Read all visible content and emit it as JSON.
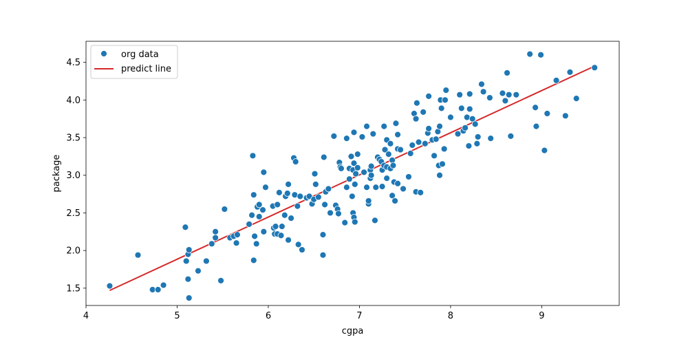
{
  "chart_data": {
    "type": "scatter",
    "xlabel": "cgpa",
    "ylabel": "package",
    "xlim": [
      4.0,
      9.85
    ],
    "ylim": [
      1.27,
      4.78
    ],
    "xticks": [
      4,
      5,
      6,
      7,
      8,
      9
    ],
    "yticks": [
      1.5,
      2.0,
      2.5,
      3.0,
      3.5,
      4.0,
      4.5
    ],
    "xtick_labels": [
      "4",
      "5",
      "6",
      "7",
      "8",
      "9"
    ],
    "ytick_labels": [
      "1.5",
      "2.0",
      "2.5",
      "3.0",
      "3.5",
      "4.0",
      "4.5"
    ],
    "grid": false,
    "legend_position": "top-left",
    "colors": {
      "points": "#1f77b4",
      "line": "#d62728",
      "point_edge": "#ffffff"
    },
    "series": [
      {
        "name": "org data",
        "kind": "scatter",
        "points": [
          [
            4.26,
            1.53
          ],
          [
            4.57,
            1.94
          ],
          [
            4.73,
            1.48
          ],
          [
            4.79,
            1.48
          ],
          [
            4.85,
            1.54
          ],
          [
            5.09,
            2.31
          ],
          [
            5.1,
            1.86
          ],
          [
            5.12,
            1.62
          ],
          [
            5.12,
            1.95
          ],
          [
            5.13,
            1.37
          ],
          [
            5.13,
            2.01
          ],
          [
            5.23,
            1.73
          ],
          [
            5.32,
            1.86
          ],
          [
            5.38,
            2.09
          ],
          [
            5.42,
            2.17
          ],
          [
            5.42,
            2.25
          ],
          [
            5.48,
            1.6
          ],
          [
            5.52,
            2.55
          ],
          [
            5.58,
            2.17
          ],
          [
            5.62,
            2.19
          ],
          [
            5.65,
            2.1
          ],
          [
            5.66,
            2.21
          ],
          [
            5.79,
            2.35
          ],
          [
            5.82,
            2.47
          ],
          [
            5.84,
            2.74
          ],
          [
            5.83,
            3.26
          ],
          [
            5.84,
            1.87
          ],
          [
            5.85,
            2.19
          ],
          [
            5.87,
            2.09
          ],
          [
            5.88,
            2.58
          ],
          [
            5.9,
            2.45
          ],
          [
            5.9,
            2.61
          ],
          [
            5.94,
            2.54
          ],
          [
            5.95,
            2.25
          ],
          [
            5.95,
            3.04
          ],
          [
            5.97,
            2.84
          ],
          [
            6.05,
            2.59
          ],
          [
            6.06,
            2.3
          ],
          [
            6.07,
            2.22
          ],
          [
            6.08,
            2.32
          ],
          [
            6.1,
            2.61
          ],
          [
            6.1,
            2.22
          ],
          [
            6.12,
            2.77
          ],
          [
            6.14,
            2.2
          ],
          [
            6.15,
            2.32
          ],
          [
            6.18,
            2.47
          ],
          [
            6.19,
            2.72
          ],
          [
            6.21,
            2.76
          ],
          [
            6.22,
            2.88
          ],
          [
            6.22,
            2.14
          ],
          [
            6.25,
            2.43
          ],
          [
            6.28,
            3.23
          ],
          [
            6.29,
            2.74
          ],
          [
            6.3,
            3.18
          ],
          [
            6.32,
            2.59
          ],
          [
            6.33,
            2.08
          ],
          [
            6.35,
            2.72
          ],
          [
            6.37,
            2.01
          ],
          [
            6.42,
            2.7
          ],
          [
            6.45,
            2.72
          ],
          [
            6.48,
            2.62
          ],
          [
            6.5,
            2.68
          ],
          [
            6.51,
            3.02
          ],
          [
            6.52,
            2.88
          ],
          [
            6.55,
            2.71
          ],
          [
            6.6,
            2.21
          ],
          [
            6.6,
            1.94
          ],
          [
            6.61,
            3.24
          ],
          [
            6.62,
            2.61
          ],
          [
            6.63,
            2.78
          ],
          [
            6.66,
            2.82
          ],
          [
            6.68,
            2.5
          ],
          [
            6.72,
            3.52
          ],
          [
            6.74,
            2.6
          ],
          [
            6.76,
            2.55
          ],
          [
            6.77,
            2.49
          ],
          [
            6.78,
            3.17
          ],
          [
            6.79,
            3.11
          ],
          [
            6.8,
            3.09
          ],
          [
            6.84,
            2.37
          ],
          [
            6.86,
            2.84
          ],
          [
            6.86,
            3.49
          ],
          [
            6.89,
            2.95
          ],
          [
            6.89,
            3.09
          ],
          [
            6.91,
            3.25
          ],
          [
            6.92,
            2.72
          ],
          [
            6.93,
            3.07
          ],
          [
            6.93,
            2.5
          ],
          [
            6.94,
            3.57
          ],
          [
            6.94,
            2.44
          ],
          [
            6.94,
            3.16
          ],
          [
            6.95,
            2.38
          ],
          [
            6.95,
            2.88
          ],
          [
            6.96,
            3.02
          ],
          [
            6.98,
            3.28
          ],
          [
            6.98,
            3.1
          ],
          [
            7.03,
            3.51
          ],
          [
            7.05,
            3.04
          ],
          [
            7.08,
            3.65
          ],
          [
            7.08,
            2.84
          ],
          [
            7.1,
            2.62
          ],
          [
            7.1,
            2.66
          ],
          [
            7.12,
            3.07
          ],
          [
            7.12,
            2.96
          ],
          [
            7.13,
            3.12
          ],
          [
            7.13,
            3.0
          ],
          [
            7.15,
            3.55
          ],
          [
            7.17,
            2.4
          ],
          [
            7.18,
            2.84
          ],
          [
            7.2,
            3.24
          ],
          [
            7.22,
            3.21
          ],
          [
            7.24,
            3.18
          ],
          [
            7.25,
            3.07
          ],
          [
            7.25,
            2.85
          ],
          [
            7.27,
            3.13
          ],
          [
            7.27,
            3.65
          ],
          [
            7.28,
            3.34
          ],
          [
            7.3,
            3.11
          ],
          [
            7.3,
            2.96
          ],
          [
            7.3,
            3.47
          ],
          [
            7.32,
            3.28
          ],
          [
            7.34,
            3.09
          ],
          [
            7.34,
            3.42
          ],
          [
            7.36,
            2.73
          ],
          [
            7.36,
            3.2
          ],
          [
            7.37,
            3.13
          ],
          [
            7.38,
            2.91
          ],
          [
            7.39,
            2.66
          ],
          [
            7.4,
            3.69
          ],
          [
            7.42,
            3.35
          ],
          [
            7.42,
            3.54
          ],
          [
            7.42,
            2.89
          ],
          [
            7.45,
            3.34
          ],
          [
            7.48,
            2.82
          ],
          [
            7.54,
            2.98
          ],
          [
            7.56,
            3.29
          ],
          [
            7.58,
            3.4
          ],
          [
            7.6,
            3.82
          ],
          [
            7.62,
            3.75
          ],
          [
            7.62,
            2.78
          ],
          [
            7.63,
            3.96
          ],
          [
            7.65,
            3.44
          ],
          [
            7.67,
            2.77
          ],
          [
            7.7,
            3.84
          ],
          [
            7.72,
            3.42
          ],
          [
            7.75,
            3.56
          ],
          [
            7.76,
            4.05
          ],
          [
            7.76,
            3.62
          ],
          [
            7.8,
            3.47
          ],
          [
            7.82,
            3.26
          ],
          [
            7.84,
            3.48
          ],
          [
            7.86,
            3.58
          ],
          [
            7.87,
            3.13
          ],
          [
            7.88,
            3.65
          ],
          [
            7.88,
            3.0
          ],
          [
            7.89,
            4.0
          ],
          [
            7.9,
            3.89
          ],
          [
            7.91,
            3.15
          ],
          [
            7.93,
            3.35
          ],
          [
            7.94,
            4.0
          ],
          [
            7.95,
            4.13
          ],
          [
            8.0,
            3.77
          ],
          [
            8.08,
            3.55
          ],
          [
            8.1,
            4.07
          ],
          [
            8.12,
            3.89
          ],
          [
            8.14,
            3.59
          ],
          [
            8.16,
            3.63
          ],
          [
            8.18,
            3.77
          ],
          [
            8.2,
            3.39
          ],
          [
            8.21,
            4.08
          ],
          [
            8.21,
            3.88
          ],
          [
            8.24,
            3.75
          ],
          [
            8.27,
            3.68
          ],
          [
            8.29,
            3.42
          ],
          [
            8.3,
            3.51
          ],
          [
            8.34,
            4.21
          ],
          [
            8.36,
            4.11
          ],
          [
            8.43,
            4.03
          ],
          [
            8.44,
            3.49
          ],
          [
            8.57,
            4.09
          ],
          [
            8.6,
            3.99
          ],
          [
            8.62,
            4.36
          ],
          [
            8.64,
            4.07
          ],
          [
            8.66,
            3.52
          ],
          [
            8.72,
            4.07
          ],
          [
            8.87,
            4.61
          ],
          [
            8.93,
            3.9
          ],
          [
            8.94,
            3.65
          ],
          [
            8.99,
            4.6
          ],
          [
            9.03,
            3.33
          ],
          [
            9.06,
            3.82
          ],
          [
            9.16,
            4.26
          ],
          [
            9.26,
            3.79
          ],
          [
            9.31,
            4.37
          ],
          [
            9.38,
            4.02
          ],
          [
            9.58,
            4.43
          ]
        ]
      },
      {
        "name": "predict line",
        "kind": "line",
        "points": [
          [
            4.26,
            1.47
          ],
          [
            9.58,
            4.45
          ]
        ]
      }
    ]
  }
}
